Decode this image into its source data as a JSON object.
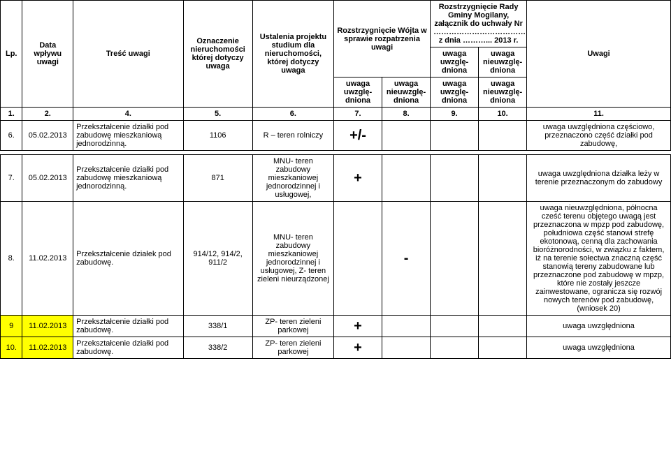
{
  "header": {
    "lp": "Lp.",
    "date": "Data wpływu uwagi",
    "content": "Treść uwagi",
    "ozn": "Oznaczenie nieruchomości której dotyczy uwaga",
    "stud": "Ustalenia projektu studium dla nieruchomości, której dotyczy uwaga",
    "wojt": "Rozstrzygnięcie Wójta w sprawie rozpatrzenia uwagi",
    "rada1": "Rozstrzygnięcie Rady Gminy Mogilany, załącznik do uchwały Nr",
    "rada2": "………………………………",
    "rada3": "z dnia ………... 2013 r.",
    "uw": "uwaga uwzglę-dniona",
    "nuw": "uwaga nieuwzglę-dniona",
    "uwagi": "Uwagi"
  },
  "numrow": {
    "c1": "1.",
    "c2": "2.",
    "c4": "4.",
    "c5": "5.",
    "c6": "6.",
    "c7": "7.",
    "c8": "8.",
    "c9": "9.",
    "c10": "10.",
    "c11": "11."
  },
  "rows": [
    {
      "lp": "6.",
      "date": "05.02.2013",
      "content": "Przekształcenie działki pod zabudowę mieszkaniową jednorodzinną.",
      "ozn": "1106",
      "stud": "R – teren rolniczy",
      "wojt_uw": "+/-",
      "wojt_nuw": "",
      "rada_uw": "",
      "rada_nuw": "",
      "uwagi": "uwaga uwzględniona częściowo, przeznaczono część działki pod zabudowę,",
      "hl": false
    },
    {
      "lp": "7.",
      "date": "05.02.2013",
      "content": "Przekształcenie działki pod zabudowę mieszkaniową jednorodzinną.",
      "ozn": "871",
      "stud": "MNU- teren zabudowy mieszkaniowej jednorodzinnej i usługowej,",
      "wojt_uw": "+",
      "wojt_nuw": "",
      "rada_uw": "",
      "rada_nuw": "",
      "uwagi": "uwaga uwzględniona działka leży w terenie przeznaczonym do zabudowy",
      "hl": false
    },
    {
      "lp": "8.",
      "date": "11.02.2013",
      "content": "Przekształcenie działek pod zabudowę.",
      "ozn": "914/12, 914/2, 911/2",
      "stud": "MNU- teren zabudowy mieszkaniowej jednorodzinnej i usługowej, Z- teren zieleni nieurządzonej",
      "wojt_uw": "",
      "wojt_nuw": "-",
      "rada_uw": "",
      "rada_nuw": "",
      "uwagi": "uwaga nieuwzględniona, północna cześć terenu objętego uwagą jest przeznaczona w mpzp pod zabudowę, południowa część stanowi  strefę ekotonową, cenną dla zachowania bioróżnorodności, w związku z faktem, iż na terenie sołectwa znaczną część stanowią tereny zabudowane lub przeznaczone pod zabudowę w mpzp, które nie zostały jeszcze zainwestowane, ogranicza się rozwój nowych terenów pod zabudowę, (wniosek 20)",
      "hl": false
    },
    {
      "lp": "9",
      "date": "11.02.2013",
      "content": "Przekształcenie działki pod zabudowę.",
      "ozn": "338/1",
      "stud": "ZP- teren zieleni parkowej",
      "wojt_uw": "+",
      "wojt_nuw": "",
      "rada_uw": "",
      "rada_nuw": "",
      "uwagi": "uwaga uwzględniona",
      "hl": true
    },
    {
      "lp": "10.",
      "date": "11.02.2013",
      "content": "Przekształcenie działki pod zabudowę.",
      "ozn": "338/2",
      "stud": "ZP- teren zieleni parkowej",
      "wojt_uw": "+",
      "wojt_nuw": "",
      "rada_uw": "",
      "rada_nuw": "",
      "uwagi": "uwaga uwzględniona",
      "hl": true
    }
  ]
}
